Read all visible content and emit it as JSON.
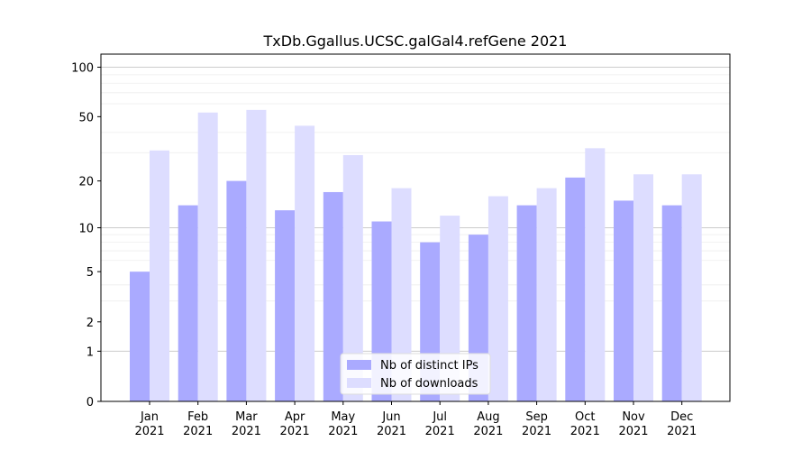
{
  "chart_data": {
    "type": "bar",
    "title": "TxDb.Ggallus.UCSC.galGal4.refGene 2021",
    "xlabel": "",
    "ylabel": "",
    "yscale": "log(1+y)",
    "ylim": [
      0,
      120
    ],
    "y_ticks": [
      0,
      1,
      2,
      5,
      10,
      20,
      50,
      100
    ],
    "categories": [
      "Jan\n2021",
      "Feb\n2021",
      "Mar\n2021",
      "Apr\n2021",
      "May\n2021",
      "Jun\n2021",
      "Jul\n2021",
      "Aug\n2021",
      "Sep\n2021",
      "Oct\n2021",
      "Nov\n2021",
      "Dec\n2021"
    ],
    "series": [
      {
        "name": "Nb of distinct IPs",
        "color": "#aaaaff",
        "values": [
          5,
          14,
          20,
          13,
          17,
          11,
          8,
          9,
          14,
          21,
          15,
          14
        ]
      },
      {
        "name": "Nb of downloads",
        "color": "#ddddff",
        "values": [
          31,
          53,
          55,
          44,
          29,
          18,
          12,
          16,
          18,
          32,
          22,
          22
        ]
      }
    ],
    "grid": true,
    "legend_position": "bottom-center"
  }
}
